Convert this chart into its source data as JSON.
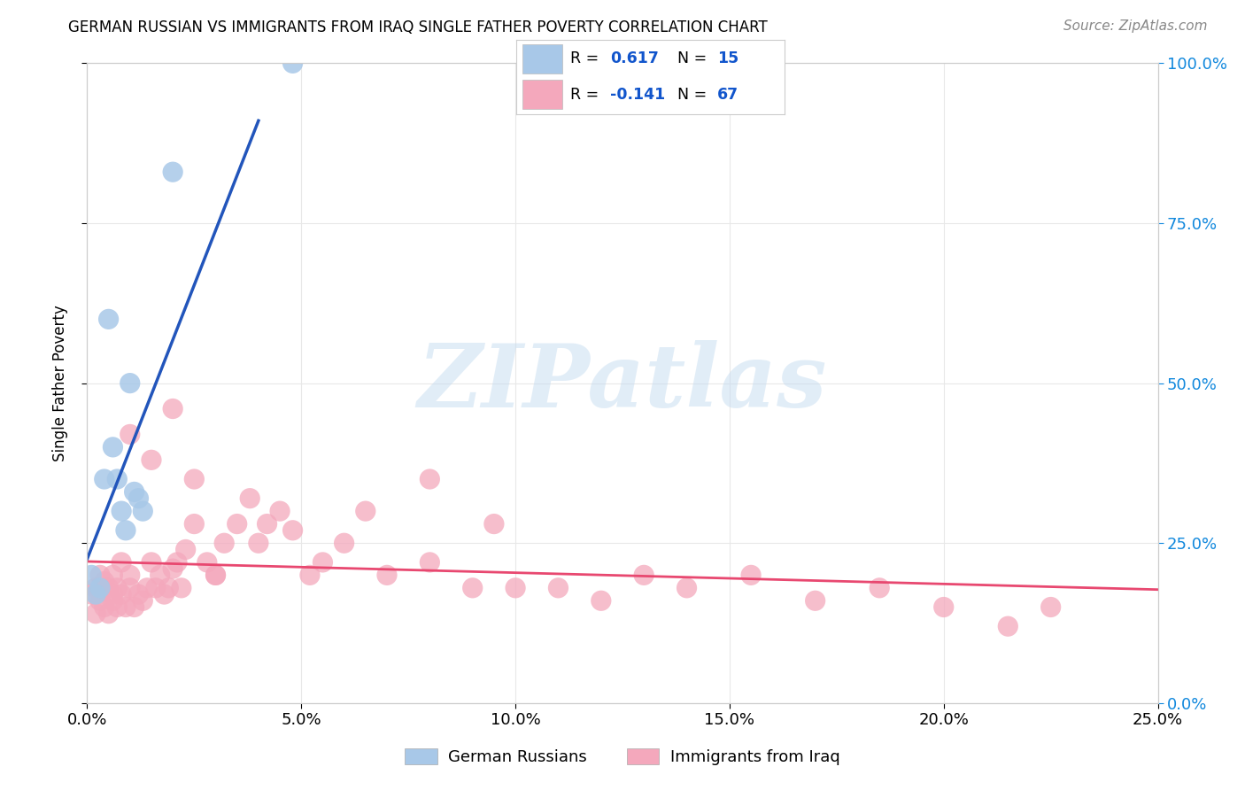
{
  "title": "GERMAN RUSSIAN VS IMMIGRANTS FROM IRAQ SINGLE FATHER POVERTY CORRELATION CHART",
  "source": "Source: ZipAtlas.com",
  "ylabel": "Single Father Poverty",
  "xlim": [
    0.0,
    0.25
  ],
  "ylim": [
    0.0,
    1.0
  ],
  "xticks": [
    0.0,
    0.05,
    0.1,
    0.15,
    0.2,
    0.25
  ],
  "yticks": [
    0.0,
    0.25,
    0.5,
    0.75,
    1.0
  ],
  "xticklabels": [
    "0.0%",
    "5.0%",
    "10.0%",
    "15.0%",
    "20.0%",
    "25.0%"
  ],
  "yticklabels_right": [
    "0.0%",
    "25.0%",
    "50.0%",
    "75.0%",
    "100.0%"
  ],
  "legend_blue_r_val": "0.617",
  "legend_blue_n_val": "15",
  "legend_pink_r_val": "-0.141",
  "legend_pink_n_val": "67",
  "legend_label_blue": "German Russians",
  "legend_label_pink": "Immigrants from Iraq",
  "blue_color": "#A8C8E8",
  "pink_color": "#F4A8BC",
  "blue_line_color": "#2255BB",
  "pink_line_color": "#E84870",
  "grid_color": "#E8E8E8",
  "background": "#FFFFFF",
  "watermark": "ZIPatlas",
  "blue_x": [
    0.001,
    0.002,
    0.003,
    0.004,
    0.005,
    0.006,
    0.007,
    0.008,
    0.009,
    0.01,
    0.011,
    0.012,
    0.013,
    0.02,
    0.048
  ],
  "blue_y": [
    0.2,
    0.17,
    0.18,
    0.35,
    0.6,
    0.4,
    0.35,
    0.3,
    0.27,
    0.5,
    0.33,
    0.32,
    0.3,
    0.83,
    1.0
  ],
  "pink_x": [
    0.001,
    0.002,
    0.002,
    0.003,
    0.003,
    0.004,
    0.004,
    0.005,
    0.005,
    0.006,
    0.006,
    0.006,
    0.007,
    0.007,
    0.008,
    0.008,
    0.009,
    0.01,
    0.01,
    0.011,
    0.012,
    0.013,
    0.014,
    0.015,
    0.016,
    0.017,
    0.018,
    0.019,
    0.02,
    0.021,
    0.022,
    0.023,
    0.025,
    0.028,
    0.03,
    0.032,
    0.035,
    0.038,
    0.04,
    0.042,
    0.045,
    0.048,
    0.052,
    0.055,
    0.06,
    0.065,
    0.07,
    0.08,
    0.09,
    0.1,
    0.11,
    0.12,
    0.13,
    0.14,
    0.155,
    0.17,
    0.185,
    0.2,
    0.215,
    0.225,
    0.08,
    0.095,
    0.01,
    0.015,
    0.02,
    0.025,
    0.03
  ],
  "pink_y": [
    0.17,
    0.14,
    0.18,
    0.16,
    0.2,
    0.15,
    0.19,
    0.14,
    0.18,
    0.16,
    0.17,
    0.2,
    0.15,
    0.18,
    0.17,
    0.22,
    0.15,
    0.18,
    0.2,
    0.15,
    0.17,
    0.16,
    0.18,
    0.22,
    0.18,
    0.2,
    0.17,
    0.18,
    0.21,
    0.22,
    0.18,
    0.24,
    0.28,
    0.22,
    0.2,
    0.25,
    0.28,
    0.32,
    0.25,
    0.28,
    0.3,
    0.27,
    0.2,
    0.22,
    0.25,
    0.3,
    0.2,
    0.22,
    0.18,
    0.18,
    0.18,
    0.16,
    0.2,
    0.18,
    0.2,
    0.16,
    0.18,
    0.15,
    0.12,
    0.15,
    0.35,
    0.28,
    0.42,
    0.38,
    0.46,
    0.35,
    0.2
  ]
}
